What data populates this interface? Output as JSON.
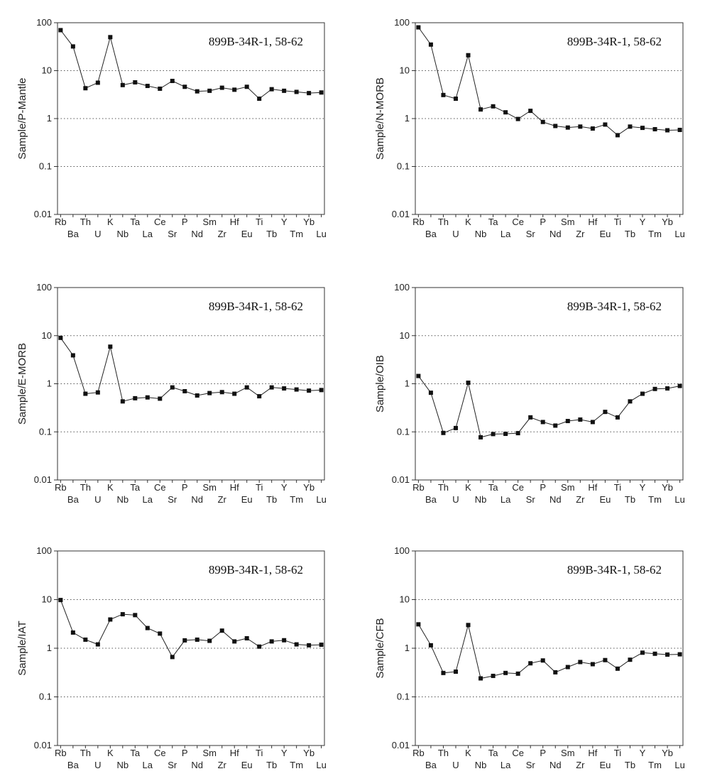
{
  "figure": {
    "sample_label": "899B-34R-1, 58-62",
    "elements_top": [
      "Rb",
      "Th",
      "K",
      "Ta",
      "Ce",
      "P",
      "Sm",
      "Hf",
      "Ti",
      "Y",
      "Yb"
    ],
    "elements_bottom": [
      "Ba",
      "U",
      "Nb",
      "La",
      "Sr",
      "Nd",
      "Zr",
      "Eu",
      "Tb",
      "Tm",
      "Lu"
    ],
    "ytick_labels": [
      "0.01",
      "0.1",
      "1",
      "10",
      "100"
    ]
  },
  "chart_data": [
    {
      "type": "line",
      "title": "899B-34R-1, 58-62",
      "xlabel": "",
      "ylabel": "Sample/P-Mantle",
      "yscale": "log",
      "ylim": [
        0.01,
        100
      ],
      "grid": "horizontal dotted",
      "x": [
        "Rb",
        "Ba",
        "Th",
        "U",
        "K",
        "Nb",
        "Ta",
        "La",
        "Ce",
        "Sr",
        "P",
        "Nd",
        "Sm",
        "Zr",
        "Hf",
        "Eu",
        "Ti",
        "Tb",
        "Y",
        "Tm",
        "Yb",
        "Lu"
      ],
      "values": [
        70,
        32,
        4.3,
        5.6,
        50,
        5.0,
        5.7,
        4.8,
        4.2,
        6.1,
        4.6,
        3.7,
        3.8,
        4.4,
        4.0,
        4.6,
        2.6,
        4.1,
        3.8,
        3.6,
        3.4,
        3.5
      ]
    },
    {
      "type": "line",
      "title": "899B-34R-1, 58-62",
      "xlabel": "",
      "ylabel": "Sample/N-MORB",
      "yscale": "log",
      "ylim": [
        0.01,
        100
      ],
      "grid": "horizontal dotted",
      "x": [
        "Rb",
        "Ba",
        "Th",
        "U",
        "K",
        "Nb",
        "Ta",
        "La",
        "Ce",
        "Sr",
        "P",
        "Nd",
        "Sm",
        "Zr",
        "Hf",
        "Eu",
        "Ti",
        "Tb",
        "Y",
        "Tm",
        "Yb",
        "Lu"
      ],
      "values": [
        80,
        35,
        3.1,
        2.6,
        21,
        1.55,
        1.8,
        1.35,
        0.98,
        1.45,
        0.85,
        0.7,
        0.65,
        0.68,
        0.62,
        0.75,
        0.45,
        0.68,
        0.64,
        0.6,
        0.57,
        0.58
      ]
    },
    {
      "type": "line",
      "title": "899B-34R-1, 58-62",
      "xlabel": "",
      "ylabel": "Sample/E-MORB",
      "yscale": "log",
      "ylim": [
        0.01,
        100
      ],
      "grid": "horizontal dotted",
      "x": [
        "Rb",
        "Ba",
        "Th",
        "U",
        "K",
        "Nb",
        "Ta",
        "La",
        "Ce",
        "Sr",
        "P",
        "Nd",
        "Sm",
        "Zr",
        "Hf",
        "Eu",
        "Ti",
        "Tb",
        "Y",
        "Tm",
        "Yb",
        "Lu"
      ],
      "values": [
        9.0,
        3.9,
        0.62,
        0.66,
        5.9,
        0.43,
        0.5,
        0.52,
        0.49,
        0.84,
        0.7,
        0.57,
        0.64,
        0.67,
        0.62,
        0.84,
        0.55,
        0.84,
        0.8,
        0.76,
        0.72,
        0.74
      ]
    },
    {
      "type": "line",
      "title": "899B-34R-1, 58-62",
      "xlabel": "",
      "ylabel": "Sample/OIB",
      "yscale": "log",
      "ylim": [
        0.01,
        100
      ],
      "grid": "horizontal dotted",
      "x": [
        "Rb",
        "Ba",
        "Th",
        "U",
        "K",
        "Nb",
        "Ta",
        "La",
        "Ce",
        "Sr",
        "P",
        "Nd",
        "Sm",
        "Zr",
        "Hf",
        "Eu",
        "Ti",
        "Tb",
        "Y",
        "Tm",
        "Yb",
        "Lu"
      ],
      "values": [
        1.45,
        0.65,
        0.095,
        0.12,
        1.05,
        0.077,
        0.09,
        0.091,
        0.094,
        0.2,
        0.16,
        0.135,
        0.168,
        0.18,
        0.16,
        0.26,
        0.2,
        0.43,
        0.62,
        0.78,
        0.8,
        0.9
      ]
    },
    {
      "type": "line",
      "title": "899B-34R-1, 58-62",
      "xlabel": "",
      "ylabel": "Sample/IAT",
      "yscale": "log",
      "ylim": [
        0.01,
        100
      ],
      "grid": "horizontal dotted",
      "x": [
        "Rb",
        "Ba",
        "Th",
        "U",
        "K",
        "Nb",
        "Ta",
        "La",
        "Ce",
        "Sr",
        "P",
        "Nd",
        "Sm",
        "Zr",
        "Hf",
        "Eu",
        "Ti",
        "Tb",
        "Y",
        "Tm",
        "Yb",
        "Lu"
      ],
      "values": [
        9.8,
        2.1,
        1.5,
        1.2,
        3.9,
        5.0,
        4.8,
        2.6,
        2.0,
        0.66,
        1.45,
        1.5,
        1.42,
        2.3,
        1.38,
        1.6,
        1.08,
        1.38,
        1.46,
        1.2,
        1.15,
        1.18
      ]
    },
    {
      "type": "line",
      "title": "899B-34R-1, 58-62",
      "xlabel": "",
      "ylabel": "Sample/CFB",
      "yscale": "log",
      "ylim": [
        0.01,
        100
      ],
      "grid": "horizontal dotted",
      "x": [
        "Rb",
        "Ba",
        "Th",
        "U",
        "K",
        "Nb",
        "Ta",
        "La",
        "Ce",
        "Sr",
        "P",
        "Nd",
        "Sm",
        "Zr",
        "Hf",
        "Eu",
        "Ti",
        "Tb",
        "Y",
        "Tm",
        "Yb",
        "Lu"
      ],
      "values": [
        3.1,
        1.15,
        0.31,
        0.33,
        3.0,
        0.24,
        0.27,
        0.31,
        0.3,
        0.49,
        0.56,
        0.32,
        0.41,
        0.52,
        0.47,
        0.57,
        0.38,
        0.58,
        0.81,
        0.77,
        0.74,
        0.75
      ]
    }
  ]
}
